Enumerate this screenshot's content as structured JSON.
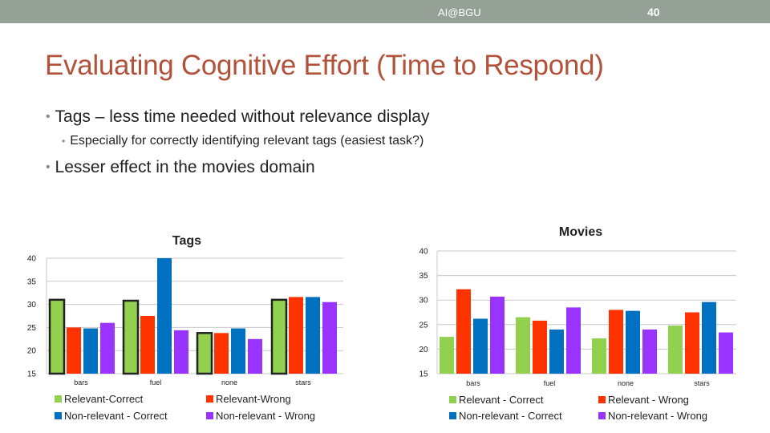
{
  "header": {
    "site": "AI@BGU",
    "page_number": "40"
  },
  "slide": {
    "title": "Evaluating Cognitive Effort (Time to Respond)",
    "bullets": [
      {
        "level": 1,
        "text": "Tags – less time needed without relevance display"
      },
      {
        "level": 2,
        "text": "Especially for correctly identifying relevant tags (easiest task?)"
      },
      {
        "level": 1,
        "text": "Lesser effect in the movies domain"
      }
    ]
  },
  "colors": {
    "Relevant-Correct": "#92d050",
    "Relevant-Wrong": "#ff3300",
    "Non-relevant-Correct": "#0070c0",
    "Non-relevant-Wrong": "#9933ff"
  },
  "chart_data": [
    {
      "type": "bar",
      "title": "Tags",
      "categories": [
        "bars",
        "fuel",
        "none",
        "stars"
      ],
      "series": [
        {
          "name": "Relevant-Correct",
          "values": [
            31,
            30.8,
            23.8,
            31
          ]
        },
        {
          "name": "Relevant-Wrong",
          "values": [
            25,
            27.5,
            23.8,
            31.6
          ]
        },
        {
          "name": "Non-relevant - Correct",
          "values": [
            24.8,
            40,
            24.8,
            31.6
          ]
        },
        {
          "name": "Non-relevant - Wrong",
          "values": [
            26,
            24.4,
            22.5,
            30.5
          ]
        }
      ],
      "highlighted_series": "Relevant-Correct",
      "ylim": [
        15,
        40
      ],
      "yticks": [
        "15",
        "20",
        "25",
        "30",
        "35",
        "40"
      ],
      "grid": true,
      "legend": "bottom"
    },
    {
      "type": "bar",
      "title": "Movies",
      "categories": [
        "bars",
        "fuel",
        "none",
        "stars"
      ],
      "series": [
        {
          "name": "Relevant - Correct",
          "values": [
            22.5,
            26.5,
            22.2,
            24.8
          ]
        },
        {
          "name": "Relevant - Wrong",
          "values": [
            32.2,
            25.8,
            28,
            27.5
          ]
        },
        {
          "name": "Non-relevant - Correct",
          "values": [
            26.2,
            24,
            27.8,
            29.6
          ]
        },
        {
          "name": "Non-relevant - Wrong",
          "values": [
            30.7,
            28.5,
            24,
            23.4
          ]
        }
      ],
      "ylim": [
        15,
        40
      ],
      "yticks": [
        "15",
        "20",
        "25",
        "30",
        "35",
        "40"
      ],
      "grid": true,
      "legend": "bottom"
    }
  ]
}
